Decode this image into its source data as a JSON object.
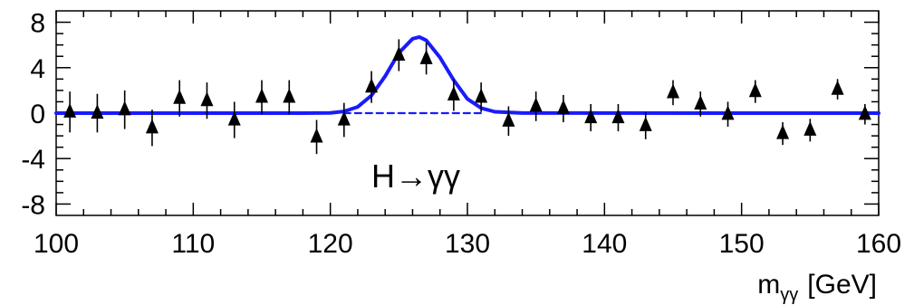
{
  "chart_data": {
    "type": "scatter",
    "xlabel": "m",
    "xlabel_subscript": "γγ",
    "xlabel_unit": "[GeV]",
    "ylabel": "",
    "xlim": [
      100,
      160
    ],
    "ylim": [
      -9,
      9
    ],
    "x_ticks": [
      100,
      110,
      120,
      130,
      140,
      150,
      160
    ],
    "y_ticks": [
      8,
      4,
      0,
      -4,
      -8
    ],
    "grid": false,
    "annotation": "H→γγ",
    "series": [
      {
        "type": "scatter",
        "marker": "triangle-up",
        "color": "#000000",
        "points": [
          {
            "x": 101,
            "y": 0.1,
            "err": 1.8
          },
          {
            "x": 103,
            "y": 0.0,
            "err": 1.7
          },
          {
            "x": 105,
            "y": 0.3,
            "err": 1.7
          },
          {
            "x": 107,
            "y": -1.3,
            "err": 1.6
          },
          {
            "x": 109,
            "y": 1.3,
            "err": 1.6
          },
          {
            "x": 111,
            "y": 1.1,
            "err": 1.6
          },
          {
            "x": 113,
            "y": -0.6,
            "err": 1.6
          },
          {
            "x": 115,
            "y": 1.4,
            "err": 1.5
          },
          {
            "x": 117,
            "y": 1.4,
            "err": 1.5
          },
          {
            "x": 119,
            "y": -2.1,
            "err": 1.5
          },
          {
            "x": 121,
            "y": -0.6,
            "err": 1.5
          },
          {
            "x": 123,
            "y": 2.3,
            "err": 1.4
          },
          {
            "x": 125,
            "y": 5.1,
            "err": 1.4
          },
          {
            "x": 127,
            "y": 4.8,
            "err": 1.4
          },
          {
            "x": 129,
            "y": 1.6,
            "err": 1.4
          },
          {
            "x": 131,
            "y": 1.4,
            "err": 1.3
          },
          {
            "x": 133,
            "y": -0.7,
            "err": 1.3
          },
          {
            "x": 135,
            "y": 0.6,
            "err": 1.3
          },
          {
            "x": 137,
            "y": 0.4,
            "err": 1.2
          },
          {
            "x": 139,
            "y": -0.4,
            "err": 1.2
          },
          {
            "x": 141,
            "y": -0.4,
            "err": 1.2
          },
          {
            "x": 143,
            "y": -1.1,
            "err": 1.2
          },
          {
            "x": 145,
            "y": 1.8,
            "err": 1.1
          },
          {
            "x": 147,
            "y": 0.8,
            "err": 1.1
          },
          {
            "x": 149,
            "y": -0.1,
            "err": 1.1
          },
          {
            "x": 151,
            "y": 1.9,
            "err": 1.0
          },
          {
            "x": 153,
            "y": -1.8,
            "err": 1.0
          },
          {
            "x": 155,
            "y": -1.5,
            "err": 1.0
          },
          {
            "x": 157,
            "y": 2.1,
            "err": 0.9
          },
          {
            "x": 159,
            "y": -0.1,
            "err": 0.9
          }
        ]
      },
      {
        "type": "line",
        "style": "solid",
        "color": "#1a1aff",
        "description": "signal + background fit",
        "x": [
          100,
          118,
          120,
          121,
          122,
          123,
          124,
          125,
          126,
          126.5,
          127,
          128,
          129,
          130,
          131,
          132,
          134,
          160
        ],
        "y": [
          0,
          0,
          0.02,
          0.15,
          0.55,
          1.55,
          3.25,
          5.3,
          6.55,
          6.7,
          6.4,
          4.9,
          2.9,
          1.25,
          0.45,
          0.12,
          0.01,
          0
        ]
      },
      {
        "type": "line",
        "style": "dashed",
        "color": "#1a1aff",
        "description": "background-only",
        "x": [
          121,
          131
        ],
        "y": [
          0,
          0
        ]
      }
    ]
  }
}
